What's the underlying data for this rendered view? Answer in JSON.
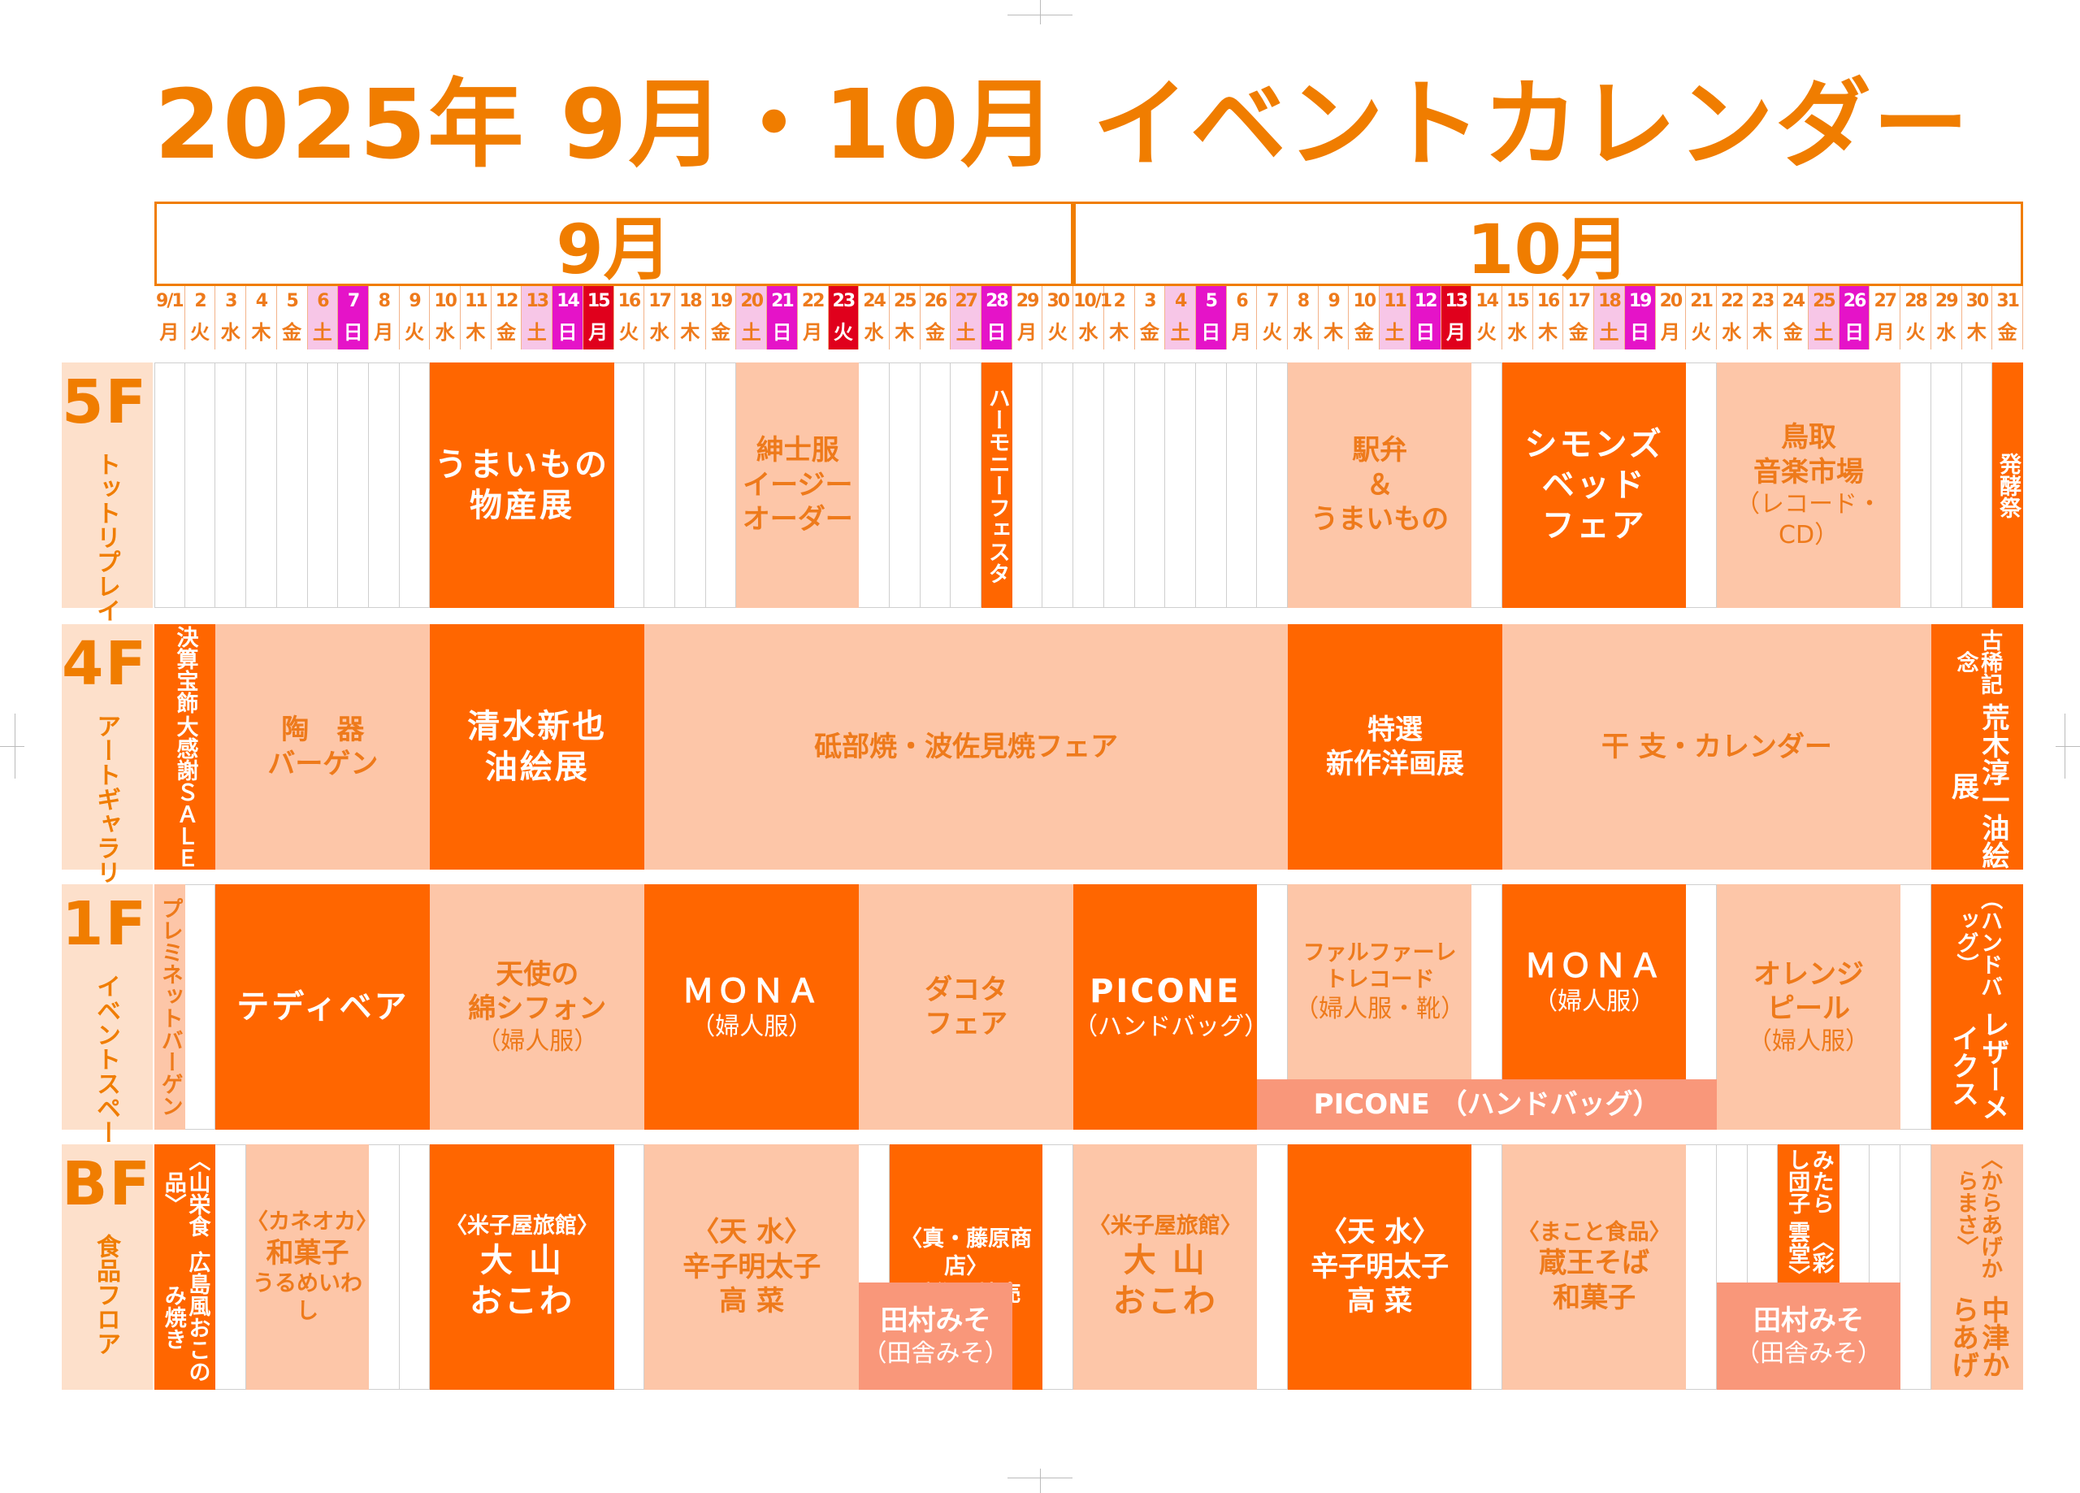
{
  "title": "2025年 9月・10月 イベントカレンダー",
  "months": [
    {
      "label": "9月",
      "start": 0,
      "span": 30
    },
    {
      "label": "10月",
      "start": 30,
      "span": 31
    }
  ],
  "days": [
    {
      "n": "9/1",
      "w": "月"
    },
    {
      "n": "2",
      "w": "火"
    },
    {
      "n": "3",
      "w": "水"
    },
    {
      "n": "4",
      "w": "木"
    },
    {
      "n": "5",
      "w": "金"
    },
    {
      "n": "6",
      "w": "土",
      "t": "sat"
    },
    {
      "n": "7",
      "w": "日",
      "t": "sun"
    },
    {
      "n": "8",
      "w": "月"
    },
    {
      "n": "9",
      "w": "火"
    },
    {
      "n": "10",
      "w": "水"
    },
    {
      "n": "11",
      "w": "木"
    },
    {
      "n": "12",
      "w": "金"
    },
    {
      "n": "13",
      "w": "土",
      "t": "sat"
    },
    {
      "n": "14",
      "w": "日",
      "t": "sun"
    },
    {
      "n": "15",
      "w": "月",
      "t": "hol"
    },
    {
      "n": "16",
      "w": "火"
    },
    {
      "n": "17",
      "w": "水"
    },
    {
      "n": "18",
      "w": "木"
    },
    {
      "n": "19",
      "w": "金"
    },
    {
      "n": "20",
      "w": "土",
      "t": "sat"
    },
    {
      "n": "21",
      "w": "日",
      "t": "sun"
    },
    {
      "n": "22",
      "w": "月"
    },
    {
      "n": "23",
      "w": "火",
      "t": "hol"
    },
    {
      "n": "24",
      "w": "水"
    },
    {
      "n": "25",
      "w": "木"
    },
    {
      "n": "26",
      "w": "金"
    },
    {
      "n": "27",
      "w": "土",
      "t": "sat"
    },
    {
      "n": "28",
      "w": "日",
      "t": "sun"
    },
    {
      "n": "29",
      "w": "月"
    },
    {
      "n": "30",
      "w": "火"
    },
    {
      "n": "10/1",
      "w": "水"
    },
    {
      "n": "2",
      "w": "木"
    },
    {
      "n": "3",
      "w": "金"
    },
    {
      "n": "4",
      "w": "土",
      "t": "sat"
    },
    {
      "n": "5",
      "w": "日",
      "t": "sun"
    },
    {
      "n": "6",
      "w": "月"
    },
    {
      "n": "7",
      "w": "火"
    },
    {
      "n": "8",
      "w": "水"
    },
    {
      "n": "9",
      "w": "木"
    },
    {
      "n": "10",
      "w": "金"
    },
    {
      "n": "11",
      "w": "土",
      "t": "sat"
    },
    {
      "n": "12",
      "w": "日",
      "t": "sun"
    },
    {
      "n": "13",
      "w": "月",
      "t": "hol"
    },
    {
      "n": "14",
      "w": "火"
    },
    {
      "n": "15",
      "w": "水"
    },
    {
      "n": "16",
      "w": "木"
    },
    {
      "n": "17",
      "w": "金"
    },
    {
      "n": "18",
      "w": "土",
      "t": "sat"
    },
    {
      "n": "19",
      "w": "日",
      "t": "sun"
    },
    {
      "n": "20",
      "w": "月"
    },
    {
      "n": "21",
      "w": "火"
    },
    {
      "n": "22",
      "w": "水"
    },
    {
      "n": "23",
      "w": "木"
    },
    {
      "n": "24",
      "w": "金"
    },
    {
      "n": "25",
      "w": "土",
      "t": "sat"
    },
    {
      "n": "26",
      "w": "日",
      "t": "sun"
    },
    {
      "n": "27",
      "w": "月"
    },
    {
      "n": "28",
      "w": "火"
    },
    {
      "n": "29",
      "w": "水"
    },
    {
      "n": "30",
      "w": "木"
    },
    {
      "n": "31",
      "w": "金"
    }
  ],
  "colors": {
    "accent": "#f07d00",
    "dark_event": "#ff6600",
    "light_event": "#fdc6a8",
    "pink_event": "#f9977a",
    "saturday": "#f7c6e7",
    "sunday": "#e513c8",
    "holiday": "#e0001c"
  },
  "floors": [
    {
      "code": "5F",
      "name": "トットリプレイス",
      "events": [
        {
          "start": 9,
          "end": 14,
          "style": "dark",
          "lines": [
            {
              "t": "うまいもの",
              "c": "big"
            },
            {
              "t": "物産展",
              "c": "big"
            }
          ]
        },
        {
          "start": 19,
          "end": 22,
          "style": "light",
          "lines": [
            {
              "t": "紳士服",
              "c": "mid"
            },
            {
              "t": "イージー",
              "c": "mid"
            },
            {
              "t": "オーダー",
              "c": "mid"
            }
          ]
        },
        {
          "start": 27,
          "end": 27,
          "style": "dark",
          "vertical": true,
          "lines": [
            {
              "t": "ハーモニーフェスタ",
              "c": "tiny"
            }
          ]
        },
        {
          "start": 37,
          "end": 42,
          "style": "light",
          "lines": [
            {
              "t": "駅弁",
              "c": "mid"
            },
            {
              "t": "＆",
              "c": "mid"
            },
            {
              "t": "うまいもの",
              "c": "mid"
            }
          ]
        },
        {
          "start": 44,
          "end": 49,
          "style": "dark",
          "lines": [
            {
              "t": "シモンズ",
              "c": "big"
            },
            {
              "t": "ベッド",
              "c": "big"
            },
            {
              "t": "フェア",
              "c": "big"
            }
          ]
        },
        {
          "start": 51,
          "end": 56,
          "style": "light",
          "lines": [
            {
              "t": "鳥取",
              "c": "mid"
            },
            {
              "t": "音楽市場",
              "c": "mid"
            },
            {
              "t": "（レコード・CD）",
              "c": "small"
            }
          ]
        },
        {
          "start": 60,
          "end": 60,
          "style": "dark",
          "vertical": true,
          "lines": [
            {
              "t": "発酵祭",
              "c": "tiny"
            }
          ]
        }
      ]
    },
    {
      "code": "4F",
      "name": "アートギャラリー",
      "events": [
        {
          "start": 0,
          "end": 1,
          "style": "dark",
          "vertical": true,
          "lines": [
            {
              "t": "大感謝ＳＡＬＥ",
              "c": "tiny"
            },
            {
              "t": "決算宝飾",
              "c": "tiny"
            }
          ]
        },
        {
          "start": 2,
          "end": 8,
          "style": "light",
          "lines": [
            {
              "t": "陶　器",
              "c": "mid"
            },
            {
              "t": "バーゲン",
              "c": "mid"
            }
          ]
        },
        {
          "start": 9,
          "end": 15,
          "style": "dark",
          "lines": [
            {
              "t": "清水新也",
              "c": "big"
            },
            {
              "t": "油絵展",
              "c": "big"
            }
          ]
        },
        {
          "start": 16,
          "end": 36,
          "style": "light",
          "lines": [
            {
              "t": "砥部焼・波佐見焼フェア",
              "c": "mid"
            }
          ]
        },
        {
          "start": 37,
          "end": 43,
          "style": "dark",
          "lines": [
            {
              "t": "特選",
              "c": "mid"
            },
            {
              "t": "新作洋画展",
              "c": "mid"
            }
          ]
        },
        {
          "start": 44,
          "end": 57,
          "style": "light",
          "lines": [
            {
              "t": "干 支・カレンダー",
              "c": "mid"
            }
          ]
        },
        {
          "start": 58,
          "end": 60,
          "style": "dark",
          "vertical": true,
          "lines": [
            {
              "t": "荒木淳一油絵展",
              "c": "mid"
            },
            {
              "t": "古稀記念",
              "c": "tiny"
            }
          ]
        }
      ]
    },
    {
      "code": "1F",
      "name": "イベントスペース",
      "events": [
        {
          "start": 0,
          "end": 0,
          "style": "light",
          "vertical": true,
          "lines": [
            {
              "t": "プレミネットバーゲン",
              "c": "tiny"
            }
          ]
        },
        {
          "start": 2,
          "end": 8,
          "style": "dark",
          "lines": [
            {
              "t": "テディベア",
              "c": "big"
            }
          ]
        },
        {
          "start": 9,
          "end": 15,
          "style": "light",
          "lines": [
            {
              "t": "天使の",
              "c": "mid"
            },
            {
              "t": "綿シフォン",
              "c": "mid"
            },
            {
              "t": "（婦人服）",
              "c": "small"
            }
          ]
        },
        {
          "start": 16,
          "end": 22,
          "style": "dark",
          "lines": [
            {
              "t": "ＭＯＮＡ",
              "c": "big"
            },
            {
              "t": "（婦人服）",
              "c": "small"
            }
          ]
        },
        {
          "start": 23,
          "end": 29,
          "style": "light",
          "lines": [
            {
              "t": "ダコタ",
              "c": "mid"
            },
            {
              "t": "フェア",
              "c": "mid"
            }
          ]
        },
        {
          "start": 30,
          "end": 35,
          "style": "dark",
          "lines": [
            {
              "t": "PICONE",
              "c": "big"
            },
            {
              "t": "（ハンドバッグ）",
              "c": "small"
            }
          ]
        },
        {
          "start": 37,
          "end": 42,
          "style": "light",
          "bottomGap": true,
          "lines": [
            {
              "t": "ファルファーレ",
              "c": "tiny"
            },
            {
              "t": "トレコード",
              "c": "tiny"
            },
            {
              "t": "（婦人服・靴）",
              "c": "small"
            }
          ]
        },
        {
          "start": 44,
          "end": 49,
          "style": "dark",
          "bottomGap": true,
          "lines": [
            {
              "t": "ＭＯＮＡ",
              "c": "big"
            },
            {
              "t": "（婦人服）",
              "c": "small"
            }
          ]
        },
        {
          "start": 36,
          "end": 50,
          "style": "pink",
          "band": "bottom",
          "lines": [
            {
              "t": "PICONE （ハンドバッグ）",
              "c": "mid"
            }
          ]
        },
        {
          "start": 51,
          "end": 56,
          "style": "light",
          "lines": [
            {
              "t": "オレンジ",
              "c": "mid"
            },
            {
              "t": "ピール",
              "c": "mid"
            },
            {
              "t": "（婦人服）",
              "c": "small"
            }
          ]
        },
        {
          "start": 58,
          "end": 60,
          "style": "dark",
          "vertical": true,
          "lines": [
            {
              "t": "レザーメイクス",
              "c": "mid"
            },
            {
              "t": "（ハンドバッグ）",
              "c": "tiny"
            }
          ]
        }
      ]
    },
    {
      "code": "BF",
      "name": "食品フロア",
      "events": [
        {
          "start": 0,
          "end": 1,
          "style": "dark",
          "vertical": true,
          "lines": [
            {
              "t": "広島風おこのみ焼き",
              "c": "tiny"
            },
            {
              "t": "〈山栄食品〉",
              "c": "tiny"
            }
          ]
        },
        {
          "start": 3,
          "end": 6,
          "style": "light",
          "lines": [
            {
              "t": "〈カネオカ〉",
              "c": "tiny"
            },
            {
              "t": "和菓子",
              "c": "mid"
            },
            {
              "t": "うるめいわし",
              "c": "tiny"
            }
          ]
        },
        {
          "start": 9,
          "end": 14,
          "style": "dark",
          "lines": [
            {
              "t": "〈米子屋旅館〉",
              "c": "tiny"
            },
            {
              "t": "大 山",
              "c": "big"
            },
            {
              "t": "おこわ",
              "c": "big"
            }
          ]
        },
        {
          "start": 16,
          "end": 22,
          "style": "light",
          "lines": [
            {
              "t": "〈天 水〉",
              "c": "mid"
            },
            {
              "t": "辛子明太子",
              "c": "mid"
            },
            {
              "t": "高 菜",
              "c": "mid"
            }
          ]
        },
        {
          "start": 24,
          "end": 28,
          "style": "dark",
          "lines": [
            {
              "t": "〈真・藤原商店〉",
              "c": "tiny"
            },
            {
              "t": "手作り焼売",
              "c": "tiny"
            }
          ]
        },
        {
          "start": 23,
          "end": 27,
          "style": "pink",
          "band": "lowerhalf",
          "lines": [
            {
              "t": "田村みそ",
              "c": "mid"
            },
            {
              "t": "（田舎みそ）",
              "c": "small"
            }
          ]
        },
        {
          "start": 30,
          "end": 35,
          "style": "light",
          "lines": [
            {
              "t": "〈米子屋旅館〉",
              "c": "tiny"
            },
            {
              "t": "大 山",
              "c": "big"
            },
            {
              "t": "おこわ",
              "c": "big"
            }
          ]
        },
        {
          "start": 37,
          "end": 42,
          "style": "dark",
          "lines": [
            {
              "t": "〈天 水〉",
              "c": "mid"
            },
            {
              "t": "辛子明太子",
              "c": "mid"
            },
            {
              "t": "高 菜",
              "c": "mid"
            }
          ]
        },
        {
          "start": 44,
          "end": 49,
          "style": "light",
          "lines": [
            {
              "t": "〈まこと食品〉",
              "c": "tiny"
            },
            {
              "t": "蔵王そば",
              "c": "mid"
            },
            {
              "t": "和菓子",
              "c": "mid"
            }
          ]
        },
        {
          "start": 53,
          "end": 54,
          "style": "dark",
          "vertical": true,
          "upperOnly": true,
          "lines": [
            {
              "t": "〈彩雲堂〉",
              "c": "tiny"
            },
            {
              "t": "みたらし団子",
              "c": "tiny"
            }
          ]
        },
        {
          "start": 51,
          "end": 56,
          "style": "pink",
          "band": "lowerhalf",
          "lines": [
            {
              "t": "田村みそ",
              "c": "mid"
            },
            {
              "t": "（田舎みそ）",
              "c": "small"
            }
          ]
        },
        {
          "start": 58,
          "end": 60,
          "style": "light",
          "vertical": true,
          "lines": [
            {
              "t": "中津からあげ",
              "c": "mid"
            },
            {
              "t": "〈からあげからまさ〉",
              "c": "tiny"
            }
          ]
        }
      ]
    }
  ]
}
